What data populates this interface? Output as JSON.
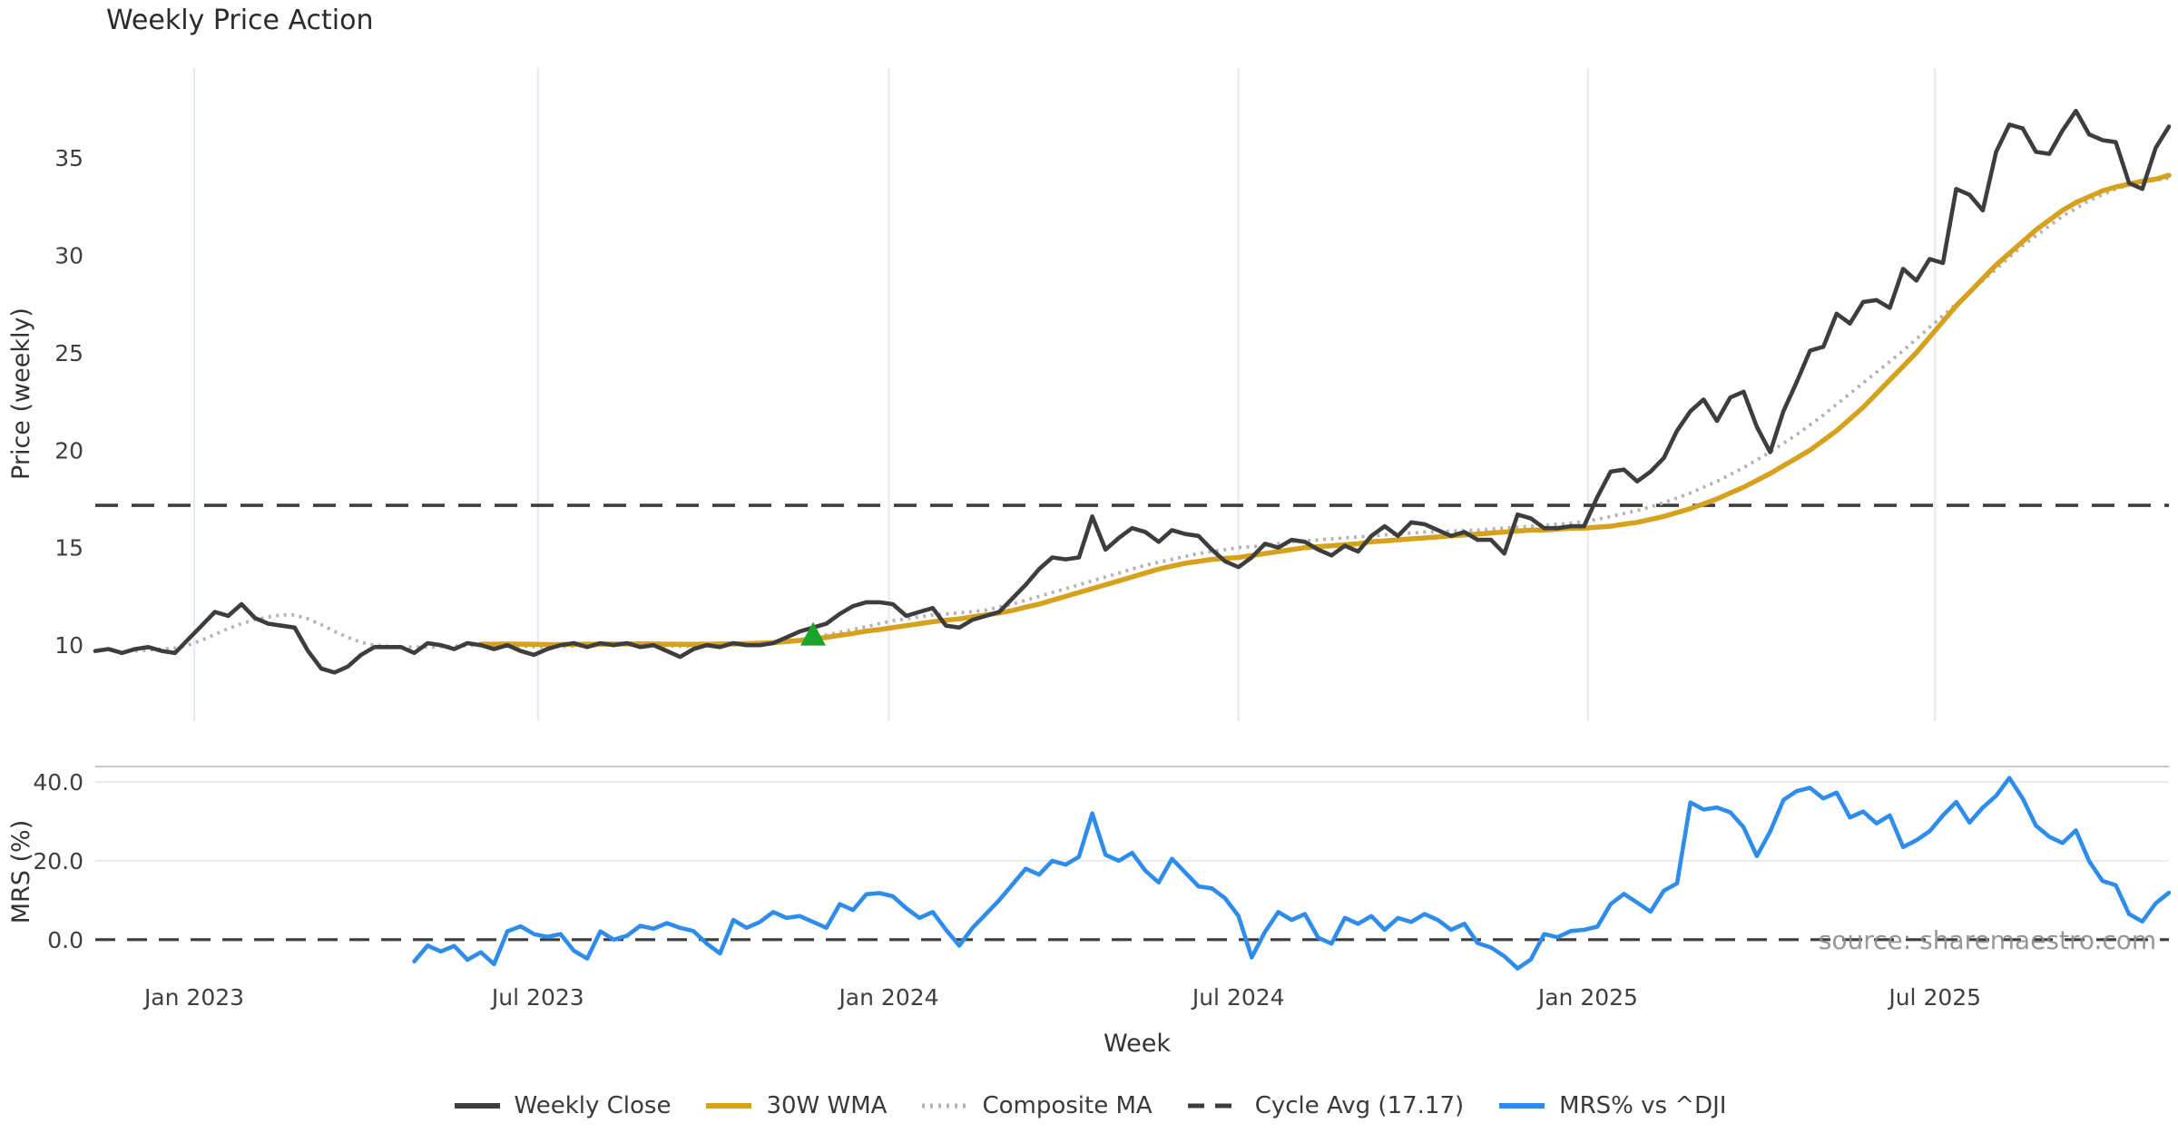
{
  "title": "Weekly Price Action",
  "watermark": "source: sharemaestro.com",
  "weeks_total": 156,
  "colors": {
    "weekly_close": "#3d3d3d",
    "wma_30w": "#d6a21d",
    "composite_ma": "#b3b3b3",
    "cycle_avg_dash": "#3d3d3d",
    "mrs_blue": "#2e8ceb",
    "signal_green": "#1ba32c",
    "grid_vertical": "#e6eaf1",
    "grid_horizontal": "#eaeaea",
    "panel_border": "#c9c9c9",
    "tick_text": "#3f3f3f",
    "watermark_text": "#8f8f8f",
    "background": "#ffffff"
  },
  "x_axis": {
    "label": "Week",
    "ticks": [
      {
        "label": "Jan 2023",
        "week": 7.44
      },
      {
        "label": "Jul 2023",
        "week": 33.3
      },
      {
        "label": "Jan 2024",
        "week": 59.7
      },
      {
        "label": "Jul 2024",
        "week": 86.0
      },
      {
        "label": "Jan 2025",
        "week": 112.3
      },
      {
        "label": "Jul 2025",
        "week": 138.4
      }
    ]
  },
  "legend": {
    "items": [
      {
        "label": "Weekly Close",
        "color": "#3d3d3d",
        "dash": "solid"
      },
      {
        "label": "30W WMA",
        "color": "#d6a21d",
        "dash": "solid"
      },
      {
        "label": "Composite MA",
        "color": "#b3b3b3",
        "dash": "dotted"
      },
      {
        "label": "Cycle Avg (17.17)",
        "color": "#3d3d3d",
        "dash": "dashed"
      },
      {
        "label": "MRS% vs ^DJI",
        "color": "#2e8ceb",
        "dash": "solid"
      }
    ]
  },
  "chart_data": [
    {
      "type": "line",
      "name": "price-panel",
      "ylabel": "Price (weekly)",
      "ylim": [
        6.1,
        39.6
      ],
      "grid": "vertical-only",
      "yticks": [
        {
          "label": "10",
          "value": 10
        },
        {
          "label": "15",
          "value": 15
        },
        {
          "label": "20",
          "value": 20
        },
        {
          "label": "25",
          "value": 25
        },
        {
          "label": "30",
          "value": 30
        },
        {
          "label": "35",
          "value": 35
        }
      ],
      "hline": {
        "name": "cycle-average",
        "value": 17.17,
        "style": "dashed",
        "color": "#3d3d3d"
      },
      "marker": {
        "name": "buy-signal",
        "shape": "triangle-up",
        "color": "#1ba32c",
        "week": 54,
        "price": 10.4
      },
      "series": [
        {
          "name": "Weekly Close",
          "color": "#3d3d3d",
          "style": "solid",
          "width": 4.6,
          "start_week": 0,
          "values": [
            9.7,
            9.8,
            9.6,
            9.8,
            9.9,
            9.7,
            9.6,
            10.3,
            11.0,
            11.7,
            11.5,
            12.1,
            11.4,
            11.1,
            11.0,
            10.9,
            9.7,
            8.8,
            8.6,
            8.9,
            9.5,
            9.9,
            9.9,
            9.9,
            9.6,
            10.1,
            10.0,
            9.8,
            10.1,
            10.0,
            9.8,
            10.0,
            9.7,
            9.5,
            9.8,
            10.0,
            10.1,
            9.9,
            10.1,
            10.0,
            10.1,
            9.9,
            10.0,
            9.7,
            9.4,
            9.8,
            10.0,
            9.9,
            10.1,
            10.0,
            10.0,
            10.1,
            10.4,
            10.7,
            10.9,
            11.1,
            11.6,
            12.0,
            12.2,
            12.2,
            12.1,
            11.5,
            11.7,
            11.9,
            11.0,
            10.9,
            11.3,
            11.5,
            11.7,
            12.4,
            13.1,
            13.9,
            14.5,
            14.4,
            14.5,
            16.6,
            14.9,
            15.5,
            16.0,
            15.8,
            15.3,
            15.9,
            15.7,
            15.6,
            14.9,
            14.3,
            14.0,
            14.5,
            15.2,
            15.0,
            15.4,
            15.3,
            14.9,
            14.6,
            15.1,
            14.8,
            15.6,
            16.1,
            15.6,
            16.3,
            16.2,
            15.9,
            15.6,
            15.8,
            15.4,
            15.4,
            14.7,
            16.7,
            16.5,
            16.0,
            16.0,
            16.1,
            16.1,
            17.6,
            18.9,
            19.0,
            18.4,
            18.9,
            19.6,
            21.0,
            22.0,
            22.6,
            21.5,
            22.7,
            23.0,
            21.2,
            19.9,
            22.0,
            23.5,
            25.1,
            25.3,
            27.0,
            26.5,
            27.6,
            27.7,
            27.3,
            29.3,
            28.7,
            29.8,
            29.6,
            33.4,
            33.1,
            32.3,
            35.3,
            36.7,
            36.5,
            35.3,
            35.2,
            36.4,
            37.4,
            36.2,
            35.9,
            35.8,
            33.7,
            33.4,
            35.5,
            36.6
          ]
        },
        {
          "name": "30W WMA",
          "color": "#d6a21d",
          "style": "solid",
          "width": 5.5,
          "start_week": 29,
          "values": [
            10.05,
            10.05,
            10.06,
            10.05,
            10.04,
            10.03,
            10.03,
            10.04,
            10.05,
            10.05,
            10.06,
            10.06,
            10.07,
            10.06,
            10.05,
            10.04,
            10.04,
            10.05,
            10.06,
            10.07,
            10.08,
            10.1,
            10.13,
            10.18,
            10.24,
            10.32,
            10.4,
            10.5,
            10.6,
            10.72,
            10.8,
            10.9,
            11.0,
            11.1,
            11.2,
            11.28,
            11.35,
            11.45,
            11.55,
            11.65,
            11.78,
            11.95,
            12.1,
            12.3,
            12.5,
            12.7,
            12.9,
            13.1,
            13.3,
            13.5,
            13.7,
            13.9,
            14.05,
            14.2,
            14.3,
            14.4,
            14.45,
            14.5,
            14.6,
            14.7,
            14.8,
            14.9,
            15.0,
            15.05,
            15.1,
            15.15,
            15.2,
            15.3,
            15.35,
            15.4,
            15.45,
            15.5,
            15.55,
            15.6,
            15.65,
            15.7,
            15.75,
            15.8,
            15.85,
            15.9,
            15.9,
            15.95,
            16.0,
            16.0,
            16.05,
            16.1,
            16.2,
            16.3,
            16.45,
            16.6,
            16.8,
            17.0,
            17.25,
            17.5,
            17.8,
            18.1,
            18.45,
            18.8,
            19.2,
            19.6,
            20.0,
            20.5,
            21.0,
            21.6,
            22.2,
            22.9,
            23.6,
            24.3,
            25.0,
            25.8,
            26.6,
            27.4,
            28.1,
            28.8,
            29.5,
            30.1,
            30.7,
            31.3,
            31.8,
            32.3,
            32.7,
            33.0,
            33.3,
            33.5,
            33.65,
            33.8,
            33.9,
            34.1
          ]
        },
        {
          "name": "Composite MA",
          "color": "#b3b3b3",
          "style": "dotted",
          "width": 3.8,
          "start_week": 3,
          "values": [
            9.7,
            9.75,
            9.8,
            9.85,
            10.0,
            10.25,
            10.55,
            10.85,
            11.1,
            11.3,
            11.45,
            11.55,
            11.55,
            11.35,
            11.05,
            10.7,
            10.4,
            10.15,
            10.0,
            9.95,
            9.9,
            9.9,
            9.9,
            9.92,
            9.95,
            9.98,
            10.0,
            10.0,
            9.98,
            9.95,
            9.92,
            9.9,
            9.92,
            9.95,
            9.97,
            10.0,
            10.02,
            10.04,
            10.03,
            10.0,
            9.97,
            9.94,
            9.94,
            9.95,
            9.97,
            10.0,
            10.02,
            10.05,
            10.1,
            10.18,
            10.28,
            10.4,
            10.52,
            10.66,
            10.8,
            10.95,
            11.1,
            11.25,
            11.35,
            11.45,
            11.55,
            11.6,
            11.65,
            11.72,
            11.8,
            11.95,
            12.1,
            12.3,
            12.5,
            12.7,
            12.9,
            13.1,
            13.3,
            13.5,
            13.7,
            13.9,
            14.1,
            14.25,
            14.4,
            14.55,
            14.7,
            14.8,
            14.9,
            15.0,
            15.05,
            15.1,
            15.2,
            15.3,
            15.35,
            15.4,
            15.45,
            15.5,
            15.55,
            15.6,
            15.65,
            15.7,
            15.75,
            15.8,
            15.82,
            15.85,
            15.88,
            15.9,
            15.95,
            16.0,
            16.05,
            16.1,
            16.15,
            16.2,
            16.25,
            16.35,
            16.45,
            16.6,
            16.75,
            16.9,
            17.1,
            17.3,
            17.55,
            17.8,
            18.1,
            18.4,
            18.75,
            19.1,
            19.5,
            19.9,
            20.35,
            20.8,
            21.3,
            21.8,
            22.35,
            22.9,
            23.45,
            24.0,
            24.55,
            25.1,
            25.7,
            26.3,
            26.9,
            27.5,
            28.1,
            28.7,
            29.3,
            29.9,
            30.5,
            31.0,
            31.5,
            32.0,
            32.4,
            32.8,
            33.1,
            33.4,
            33.6,
            33.75,
            33.85,
            33.95
          ]
        }
      ]
    },
    {
      "type": "line",
      "name": "mrs-panel",
      "ylabel": "MRS (%)",
      "ylim": [
        -9.7,
        43.9
      ],
      "grid": "horizontal-only",
      "yticks": [
        {
          "label": "0.0",
          "value": 0
        },
        {
          "label": "20.0",
          "value": 20
        },
        {
          "label": "40.0",
          "value": 40
        }
      ],
      "hline": {
        "name": "zero-line",
        "value": 0,
        "style": "dashed",
        "color": "#3d3d3d"
      },
      "series": [
        {
          "name": "MRS% vs ^DJI",
          "color": "#2e8ceb",
          "style": "solid",
          "width": 4.6,
          "start_week": 24,
          "values": [
            -5.5,
            -1.5,
            -3.0,
            -1.6,
            -5.1,
            -3.2,
            -6.2,
            2.1,
            3.4,
            1.4,
            0.7,
            1.4,
            -2.8,
            -4.8,
            2.1,
            0.0,
            1.0,
            3.5,
            2.8,
            4.2,
            3.0,
            2.2,
            -1.0,
            -3.5,
            5.0,
            3.0,
            4.5,
            7.0,
            5.5,
            6.0,
            4.5,
            3.0,
            9.0,
            7.5,
            11.5,
            11.8,
            11.0,
            8.0,
            5.5,
            7.0,
            2.5,
            -1.5,
            3.0,
            6.5,
            10.0,
            14.0,
            18.0,
            16.5,
            20.0,
            19.0,
            21.0,
            32.0,
            21.5,
            20.0,
            22.0,
            17.5,
            14.5,
            20.5,
            17.0,
            13.5,
            13.0,
            10.5,
            6.0,
            -4.5,
            2.0,
            7.0,
            5.0,
            6.5,
            0.5,
            -1.0,
            5.5,
            4.0,
            6.0,
            2.5,
            5.5,
            4.5,
            6.5,
            5.0,
            2.5,
            4.0,
            -0.9,
            -2.0,
            -4.2,
            -7.3,
            -5.0,
            1.4,
            0.6,
            2.2,
            2.5,
            3.3,
            9.0,
            11.6,
            9.4,
            7.1,
            12.4,
            14.3,
            34.8,
            33.0,
            33.5,
            32.3,
            28.5,
            21.2,
            27.4,
            35.4,
            37.7,
            38.5,
            35.8,
            37.3,
            31.0,
            32.5,
            29.5,
            31.5,
            23.5,
            25.2,
            27.5,
            31.5,
            34.9,
            29.7,
            33.5,
            36.5,
            41.0,
            35.8,
            28.9,
            26.1,
            24.5,
            27.7,
            19.9,
            14.9,
            13.8,
            6.5,
            4.6,
            9.2,
            11.9
          ]
        }
      ]
    }
  ]
}
